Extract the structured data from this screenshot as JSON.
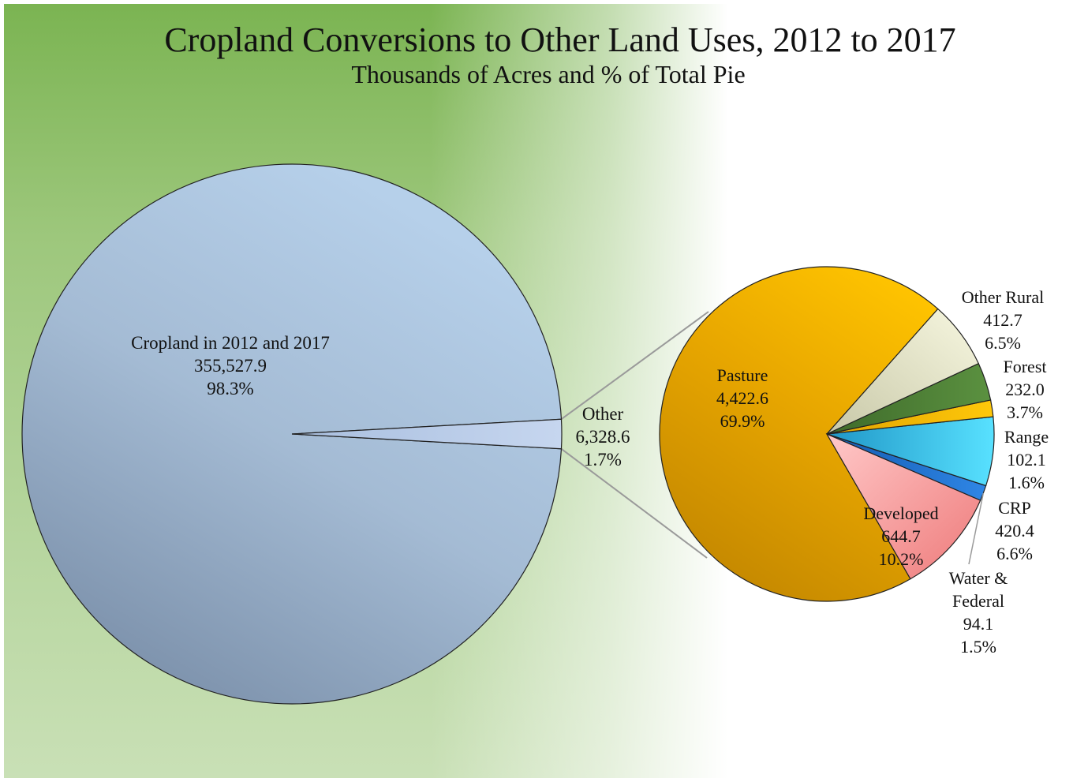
{
  "chart_data": {
    "type": "pie",
    "title": "Cropland Conversions to Other Land Uses, 2012 to 2017",
    "subtitle": "Thousands of Acres and % of Total Pie",
    "main_pie": {
      "slices": [
        {
          "label": "Cropland in 2012 and 2017",
          "value": 355527.9,
          "value_text": "355,527.9",
          "percent": "98.3%",
          "color": "#a9c0d8"
        },
        {
          "label": "Other",
          "value": 6328.6,
          "value_text": "6,328.6",
          "percent": "1.7%",
          "color": "#bcd0ec"
        }
      ]
    },
    "breakout_pie": {
      "of": "Other",
      "slices": [
        {
          "label": "Pasture",
          "value": 4422.6,
          "value_text": "4,422.6",
          "percent": "69.9%",
          "color": "#e5a500"
        },
        {
          "label": "Developed",
          "value": 644.7,
          "value_text": "644.7",
          "percent": "10.2%",
          "color": "#f7a9a9"
        },
        {
          "label": "Water & Federal",
          "label_lines": [
            "Water &",
            "Federal"
          ],
          "value": 94.1,
          "value_text": "94.1",
          "percent": "1.5%",
          "color": "#1e6ed0"
        },
        {
          "label": "CRP",
          "value": 420.4,
          "value_text": "420.4",
          "percent": "6.6%",
          "color": "#38c2ec"
        },
        {
          "label": "Range",
          "value": 102.1,
          "value_text": "102.1",
          "percent": "1.6%",
          "color": "#f3b800"
        },
        {
          "label": "Forest",
          "value": 232.0,
          "value_text": "232.0",
          "percent": "3.7%",
          "color": "#4e7f36"
        },
        {
          "label": "Other Rural",
          "value": 412.7,
          "value_text": "412.7",
          "percent": "6.5%",
          "color": "#eeeed0"
        }
      ]
    }
  }
}
